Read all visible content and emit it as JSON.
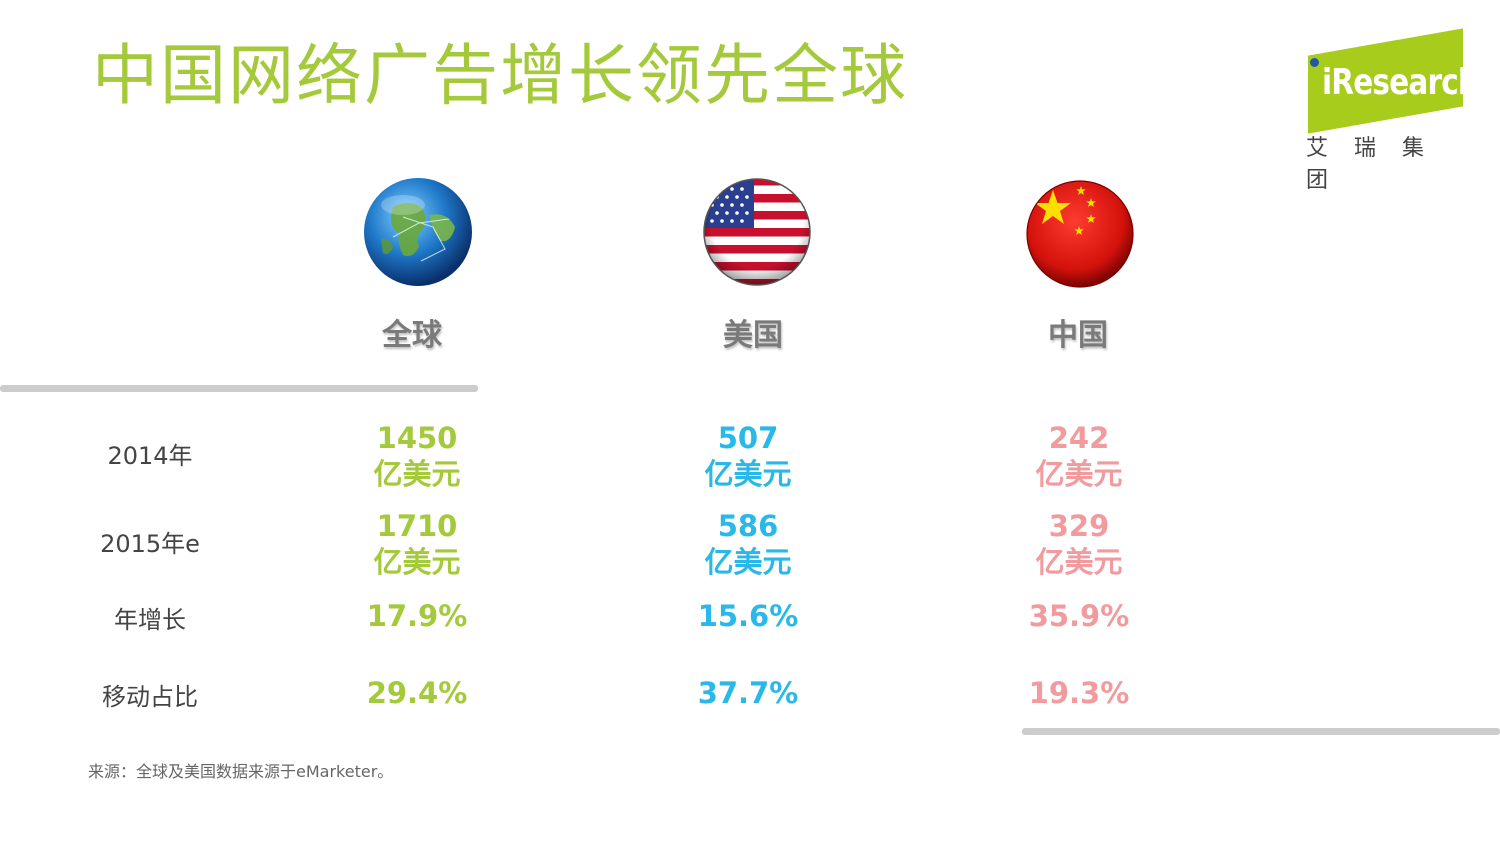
{
  "title": "中国网络广告增长领先全球",
  "logo": {
    "brand": "iResearch",
    "brand_cn": "艾瑞集团"
  },
  "columns": [
    {
      "id": "global",
      "label": "全球",
      "icon": "globe-icon",
      "color": "#a4c93a"
    },
    {
      "id": "us",
      "label": "美国",
      "icon": "us-flag-icon",
      "color": "#29b8ea"
    },
    {
      "id": "cn",
      "label": "中国",
      "icon": "china-flag-icon",
      "color": "#f29b9e"
    }
  ],
  "rows": {
    "r2014": {
      "label": "2014年",
      "global": "1450",
      "us": "507",
      "cn": "242",
      "unit": "亿美元"
    },
    "r2015": {
      "label": "2015年e",
      "global": "1710",
      "us": "586",
      "cn": "329",
      "unit": "亿美元"
    },
    "growth": {
      "label": "年增长",
      "global": "17.9%",
      "us": "15.6%",
      "cn": "35.9%"
    },
    "mobile": {
      "label": "移动占比",
      "global": "29.4%",
      "us": "37.7%",
      "cn": "19.3%"
    }
  },
  "source": "来源：全球及美国数据来源于eMarketer。"
}
